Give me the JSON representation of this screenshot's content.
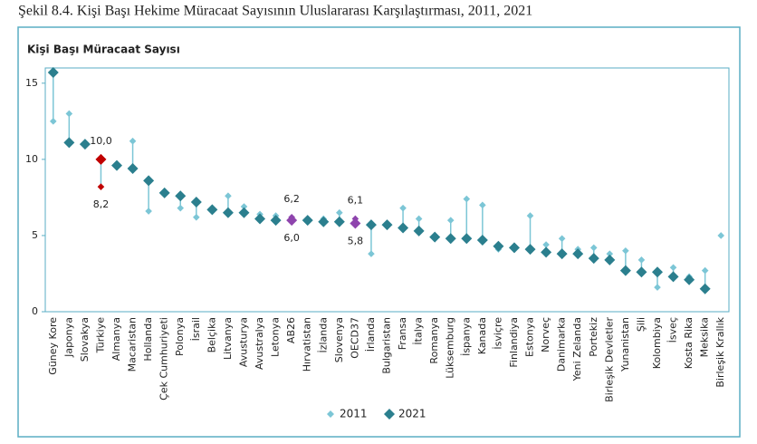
{
  "caption": "Şekil 8.4. Kişi Başı Hekime Müracaat Sayısının Uluslararası Karşılaştırması, 2011, 2021",
  "chart_data": {
    "type": "dot",
    "title": "Kişi Başı Müracaat Sayısı",
    "categories": [
      "Güney Kore",
      "Japonya",
      "Slovakya",
      "Türkiye",
      "Almanya",
      "Macaristan",
      "Hollanda",
      "Çek Cumhuriyeti",
      "Polonya",
      "İsrail",
      "Belçika",
      "Litvanya",
      "Avusturya",
      "Avustralya",
      "Letonya",
      "AB26",
      "Hırvatistan",
      "İzlanda",
      "Slovenya",
      "OECD37",
      "İrlanda",
      "Bulgaristan",
      "Fransa",
      "İtalya",
      "Romanya",
      "Lüksemburg",
      "İspanya",
      "Kanada",
      "İsviçre",
      "Finlandiya",
      "Estonya",
      "Norveç",
      "Danimarka",
      "Yeni Zelanda",
      "Portekiz",
      "Birleşik Devletler",
      "Yunanistan",
      "Şili",
      "Kolombiya",
      "İsveç",
      "Kosta Rika",
      "Meksika",
      "Birleşik Krallık"
    ],
    "highlight_colors": [
      null,
      null,
      null,
      "#c00000",
      null,
      null,
      null,
      null,
      null,
      null,
      null,
      null,
      null,
      null,
      null,
      "#8e44ad",
      null,
      null,
      null,
      "#8e44ad",
      null,
      null,
      null,
      null,
      null,
      null,
      null,
      null,
      null,
      null,
      null,
      null,
      null,
      null,
      null,
      null,
      null,
      null,
      null,
      null,
      null,
      null,
      null
    ],
    "series": [
      {
        "name": "2011",
        "color": "#7cc6d6",
        "size": "small",
        "values": [
          12.5,
          13.0,
          11.0,
          8.2,
          9.7,
          11.2,
          6.6,
          7.8,
          6.8,
          6.2,
          6.8,
          7.6,
          6.9,
          6.4,
          6.3,
          6.2,
          5.9,
          6.1,
          6.5,
          6.1,
          3.8,
          5.7,
          6.8,
          6.1,
          4.9,
          6.0,
          7.4,
          7.0,
          4.1,
          4.2,
          6.3,
          4.4,
          4.8,
          4.1,
          4.2,
          3.8,
          4.0,
          3.4,
          1.6,
          2.9,
          2.3,
          2.7,
          5.0
        ],
        "value_labels": [
          null,
          null,
          null,
          "8,2",
          null,
          null,
          null,
          null,
          null,
          null,
          null,
          null,
          null,
          null,
          null,
          "6,2",
          null,
          null,
          null,
          "6,1",
          null,
          null,
          null,
          null,
          null,
          null,
          null,
          null,
          null,
          null,
          null,
          null,
          null,
          null,
          null,
          null,
          null,
          null,
          null,
          null,
          null,
          null,
          null
        ]
      },
      {
        "name": "2021",
        "color": "#2b7f8e",
        "size": "large",
        "values": [
          15.7,
          11.1,
          11.0,
          10.0,
          9.6,
          9.4,
          8.6,
          7.8,
          7.6,
          7.2,
          6.7,
          6.5,
          6.5,
          6.1,
          6.0,
          6.0,
          6.0,
          5.9,
          5.9,
          5.8,
          5.7,
          5.7,
          5.5,
          5.3,
          4.9,
          4.8,
          4.8,
          4.7,
          4.3,
          4.2,
          4.1,
          3.9,
          3.8,
          3.8,
          3.5,
          3.4,
          2.7,
          2.6,
          2.6,
          2.3,
          2.1,
          1.5,
          null
        ],
        "value_labels": [
          null,
          null,
          null,
          "10,0",
          null,
          null,
          null,
          null,
          null,
          null,
          null,
          null,
          null,
          null,
          null,
          "6,0",
          null,
          null,
          null,
          "5,8",
          null,
          null,
          null,
          null,
          null,
          null,
          null,
          null,
          null,
          null,
          null,
          null,
          null,
          null,
          null,
          null,
          null,
          null,
          null,
          null,
          null,
          null,
          null
        ]
      }
    ],
    "ylim": [
      0,
      16
    ],
    "yticks": [
      0,
      5,
      10,
      15
    ]
  }
}
